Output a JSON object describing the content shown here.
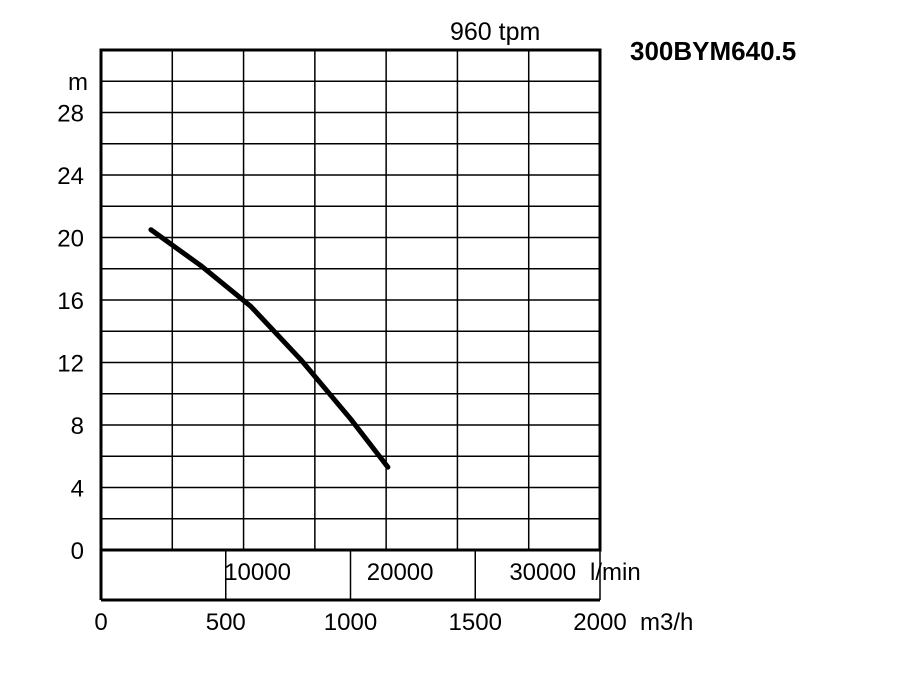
{
  "chart_data": {
    "type": "line",
    "title": "300BYM640.5",
    "speed_label": "960 tpm",
    "y_unit": "m",
    "y_ticks": [
      "0",
      "4",
      "8",
      "12",
      "16",
      "20",
      "24",
      "28"
    ],
    "x_lmin_ticks": [
      "10000",
      "20000",
      "30000"
    ],
    "x_lmin_unit": "l/min",
    "x_m3h_ticks": [
      "0",
      "500",
      "1000",
      "1500",
      "2000"
    ],
    "x_m3h_unit": "m3/h",
    "xlim": [
      0,
      2000
    ],
    "ylim": [
      0,
      30.5
    ],
    "series": [
      {
        "values": [
          {
            "x": 200,
            "y": 20.5
          },
          {
            "x": 400,
            "y": 18.2
          },
          {
            "x": 600,
            "y": 15.6
          },
          {
            "x": 800,
            "y": 12.2
          },
          {
            "x": 1000,
            "y": 8.4
          },
          {
            "x": 1150,
            "y": 5.3
          }
        ]
      }
    ]
  }
}
